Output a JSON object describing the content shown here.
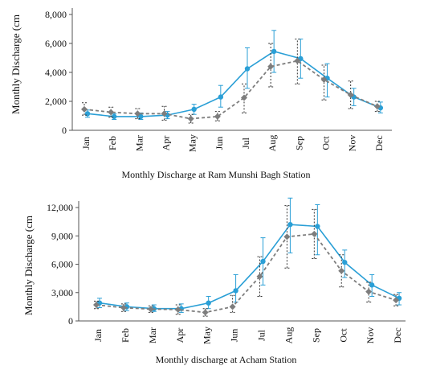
{
  "chart_data": [
    {
      "type": "line",
      "title": "Monthly Discharge at Ram Munshi Bagh Station",
      "ylabel": "Monthly Discharge (cm",
      "categories": [
        "Jan",
        "Feb",
        "Mar",
        "Apr",
        "May",
        "Jun",
        "Jul",
        "Aug",
        "Sep",
        "Oct",
        "Nov",
        "Dec"
      ],
      "ylim": [
        0,
        8000
      ],
      "yticks": [
        0,
        2000,
        4000,
        6000,
        8000
      ],
      "ytick_labels": [
        "0",
        "2,000",
        "4,000",
        "6,000",
        "8,000"
      ],
      "grid": false,
      "series": [
        {
          "color": "#2a9fd6",
          "style": "solid",
          "values": [
            1150,
            950,
            950,
            1050,
            1450,
            2300,
            4250,
            5450,
            4950,
            3600,
            2300,
            1550
          ],
          "err_low": [
            900,
            750,
            750,
            800,
            1100,
            1600,
            2900,
            4000,
            3600,
            2300,
            1700,
            1200
          ],
          "err_high": [
            1400,
            1150,
            1200,
            1300,
            1800,
            3100,
            5700,
            6900,
            6300,
            4600,
            2900,
            1950
          ]
        },
        {
          "color": "#7d7d7d",
          "style": "dashed",
          "values": [
            1450,
            1250,
            1150,
            1150,
            800,
            950,
            2250,
            4400,
            4800,
            3500,
            2450,
            1650
          ],
          "err_low": [
            1050,
            900,
            800,
            700,
            500,
            650,
            1200,
            3000,
            3200,
            2100,
            1500,
            1300
          ],
          "err_high": [
            1900,
            1600,
            1500,
            1650,
            1100,
            1300,
            3200,
            6000,
            6300,
            4500,
            3400,
            2000
          ]
        }
      ]
    },
    {
      "type": "line",
      "title": "Monthly discharge at Acham Station",
      "ylabel": "Monthly Discharge (cm",
      "categories": [
        "Jan",
        "Feb",
        "Mar",
        "Apr",
        "May",
        "Jun",
        "Jul",
        "Aug",
        "Sep",
        "Oct",
        "Nov",
        "Dec"
      ],
      "ylim": [
        0,
        12000
      ],
      "yticks": [
        0,
        3000,
        6000,
        9000,
        12000
      ],
      "ytick_labels": [
        "0",
        "3,000",
        "6,000",
        "9,000",
        "12,000"
      ],
      "grid": false,
      "series": [
        {
          "color": "#2a9fd6",
          "style": "solid",
          "values": [
            1900,
            1500,
            1300,
            1300,
            1900,
            3200,
            6300,
            10200,
            10000,
            6200,
            3800,
            2400
          ],
          "err_low": [
            1400,
            1100,
            1000,
            900,
            1300,
            2000,
            3800,
            7200,
            7000,
            4600,
            2600,
            1700
          ],
          "err_high": [
            2400,
            1900,
            1700,
            1800,
            2600,
            4900,
            8800,
            13000,
            12300,
            7500,
            4900,
            3000
          ]
        },
        {
          "color": "#7d7d7d",
          "style": "dashed",
          "values": [
            1700,
            1400,
            1250,
            1200,
            900,
            1500,
            4700,
            8900,
            9200,
            5300,
            3100,
            2200
          ],
          "err_low": [
            1300,
            1000,
            900,
            700,
            500,
            900,
            2600,
            5600,
            6600,
            3600,
            2000,
            1600
          ],
          "err_high": [
            2100,
            1800,
            1600,
            1700,
            1300,
            2700,
            6800,
            12200,
            11800,
            7000,
            4100,
            2800
          ]
        }
      ]
    }
  ]
}
